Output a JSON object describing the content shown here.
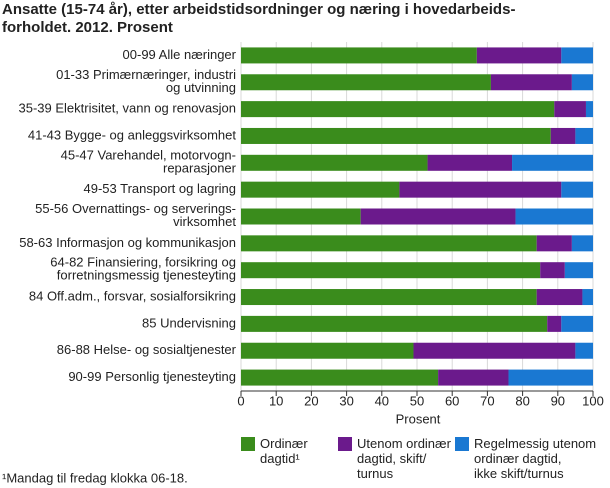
{
  "chart_data": {
    "type": "stacked-barh",
    "title": "Ansatte (15-74 år), etter arbeidstidsordninger og næring i hovedarbeids-\nforholdet. 2012. Prosent",
    "categories": [
      "00-99 Alle næringer",
      "01-33 Primærnæringer, industri\nog utvinning",
      "35-39 Elektrisitet, vann og renovasjon",
      "41-43 Bygge- og anleggsvirksomhet",
      "45-47 Varehandel, motorvogn-\nreparasjoner",
      "49-53 Transport og lagring",
      "55-56 Overnattings- og serverings-\nvirksomhet",
      "58-63 Informasjon og kommunikasjon",
      "64-82 Finansiering, forsikring og\nforretningsmessig tjenesteyting",
      "84 Off.adm., forsvar, sosialforsikring",
      "85 Undervisning",
      "86-88 Helse- og sosialtjenester",
      "90-99 Personlig tjenesteyting"
    ],
    "series": [
      {
        "name": "Ordinær\ndagtid¹",
        "color": "#3a8c1c",
        "values": [
          67,
          71,
          89,
          88,
          53,
          45,
          34,
          84,
          85,
          84,
          87,
          49,
          56
        ]
      },
      {
        "name": "Utenom ordinær\ndagtid, skift/\nturnus",
        "color": "#6b1a8c",
        "values": [
          24,
          23,
          9,
          7,
          24,
          46,
          44,
          10,
          7,
          13,
          4,
          46,
          20
        ]
      },
      {
        "name": "Regelmessig utenom\nordinær dagtid,\nikke skift/turnus",
        "color": "#1a78d2",
        "values": [
          9,
          6,
          2,
          5,
          23,
          9,
          22,
          6,
          8,
          3,
          9,
          5,
          24
        ]
      }
    ],
    "xlabel": "Prosent",
    "xlim": [
      0,
      100
    ],
    "xticks": [
      0,
      10,
      20,
      30,
      40,
      50,
      60,
      70,
      80,
      90,
      100
    ],
    "grid": true,
    "footnote": "¹Mandag til fredag klokka 06-18."
  }
}
